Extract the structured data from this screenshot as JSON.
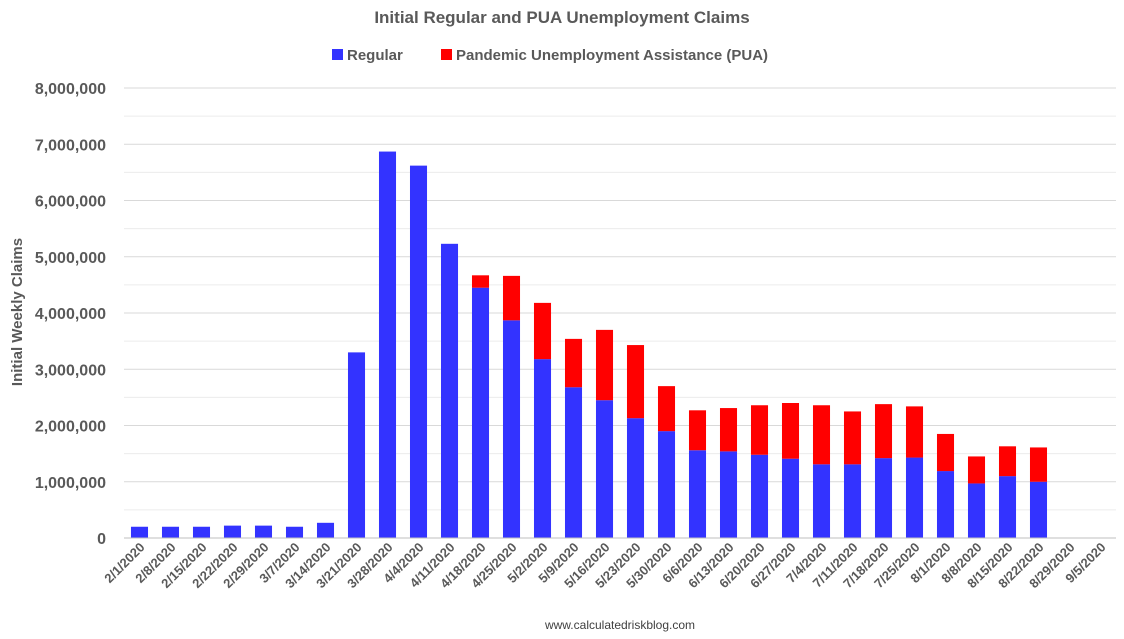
{
  "chart_data": {
    "type": "bar",
    "stacked": true,
    "title": "Initial Regular and PUA Unemployment Claims",
    "ylabel": "Initial Weekly Claims",
    "xlabel": "",
    "ylim": [
      0,
      8000000
    ],
    "y_ticks": [
      0,
      1000000,
      2000000,
      3000000,
      4000000,
      5000000,
      6000000,
      7000000,
      8000000
    ],
    "y_tick_labels": [
      "0",
      "1,000,000",
      "2,000,000",
      "3,000,000",
      "4,000,000",
      "5,000,000",
      "6,000,000",
      "7,000,000",
      "8,000,000"
    ],
    "grid": true,
    "legend_position": "top-center",
    "categories": [
      "2/1/2020",
      "2/8/2020",
      "2/15/2020",
      "2/22/2020",
      "2/29/2020",
      "3/7/2020",
      "3/14/2020",
      "3/21/2020",
      "3/28/2020",
      "4/4/2020",
      "4/11/2020",
      "4/18/2020",
      "4/25/2020",
      "5/2/2020",
      "5/9/2020",
      "5/16/2020",
      "5/23/2020",
      "5/30/2020",
      "6/6/2020",
      "6/13/2020",
      "6/20/2020",
      "6/27/2020",
      "7/4/2020",
      "7/11/2020",
      "7/18/2020",
      "7/25/2020",
      "8/1/2020",
      "8/8/2020",
      "8/15/2020",
      "8/22/2020",
      "8/29/2020",
      "9/5/2020"
    ],
    "series": [
      {
        "name": "Regular",
        "color": "#3333ff",
        "values": [
          200000,
          200000,
          200000,
          220000,
          220000,
          200000,
          270000,
          3300000,
          6870000,
          6620000,
          5230000,
          4450000,
          3870000,
          3180000,
          2680000,
          2450000,
          2130000,
          1900000,
          1560000,
          1540000,
          1480000,
          1410000,
          1310000,
          1310000,
          1420000,
          1430000,
          1190000,
          970000,
          1100000,
          1000000,
          null,
          null
        ]
      },
      {
        "name": "Pandemic Unemployment Assistance (PUA)",
        "color": "#ff0000",
        "values": [
          0,
          0,
          0,
          0,
          0,
          0,
          0,
          0,
          0,
          0,
          0,
          220000,
          790000,
          1000000,
          860000,
          1250000,
          1300000,
          800000,
          710000,
          770000,
          880000,
          990000,
          1050000,
          940000,
          960000,
          910000,
          660000,
          480000,
          530000,
          610000,
          null,
          null
        ]
      }
    ],
    "footer": "www.calculatedriskblog.com"
  }
}
